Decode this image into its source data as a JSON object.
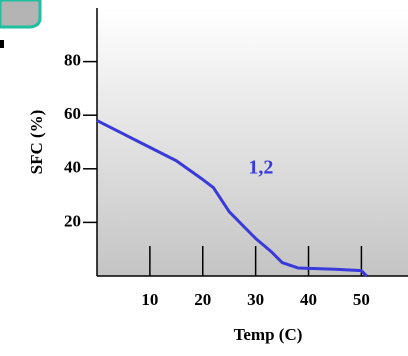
{
  "chart_data": {
    "type": "line",
    "x_label": "Temp (C)",
    "y_label": "SFC (%)",
    "annotation": "1,2",
    "xlim": [
      0,
      59
    ],
    "xticks": [
      10,
      20,
      30,
      40,
      50
    ],
    "ylim": [
      0,
      100
    ],
    "yticks": [
      20,
      40,
      60,
      80
    ],
    "series": [
      {
        "color": "#3a3adc",
        "x": [
          0,
          5,
          10,
          15,
          20,
          22,
          25,
          28,
          30,
          33,
          35,
          38,
          45,
          50,
          51
        ],
        "values": [
          58,
          53,
          48,
          43,
          36,
          33,
          24,
          18,
          14,
          9,
          5,
          3,
          2.5,
          2,
          0
        ]
      }
    ],
    "annotation_x": 31,
    "annotation_y": 40
  }
}
